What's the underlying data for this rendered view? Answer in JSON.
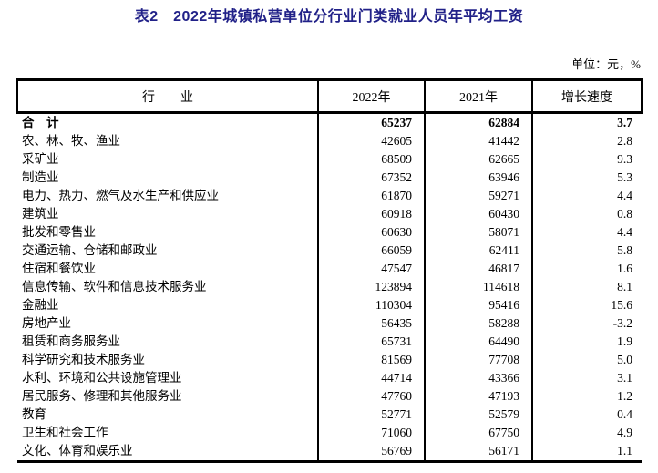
{
  "title": "表2　2022年城镇私营单位分行业门类就业人员年平均工资",
  "unit_label": "单位：元，%",
  "colors": {
    "title_text": "#212188",
    "body_text": "#000000",
    "border": "#000000",
    "background": "#ffffff"
  },
  "table": {
    "columns": [
      "行　　业",
      "2022年",
      "2021年",
      "增长速度"
    ],
    "rows": [
      {
        "industry": "合　计",
        "y2022": "65237",
        "y2021": "62884",
        "growth": "3.7",
        "bold": true
      },
      {
        "industry": "农、林、牧、渔业",
        "y2022": "42605",
        "y2021": "41442",
        "growth": "2.8",
        "bold": false
      },
      {
        "industry": "采矿业",
        "y2022": "68509",
        "y2021": "62665",
        "growth": "9.3",
        "bold": false
      },
      {
        "industry": "制造业",
        "y2022": "67352",
        "y2021": "63946",
        "growth": "5.3",
        "bold": false
      },
      {
        "industry": "电力、热力、燃气及水生产和供应业",
        "y2022": "61870",
        "y2021": "59271",
        "growth": "4.4",
        "bold": false
      },
      {
        "industry": "建筑业",
        "y2022": "60918",
        "y2021": "60430",
        "growth": "0.8",
        "bold": false
      },
      {
        "industry": "批发和零售业",
        "y2022": "60630",
        "y2021": "58071",
        "growth": "4.4",
        "bold": false
      },
      {
        "industry": "交通运输、仓储和邮政业",
        "y2022": "66059",
        "y2021": "62411",
        "growth": "5.8",
        "bold": false
      },
      {
        "industry": "住宿和餐饮业",
        "y2022": "47547",
        "y2021": "46817",
        "growth": "1.6",
        "bold": false
      },
      {
        "industry": "信息传输、软件和信息技术服务业",
        "y2022": "123894",
        "y2021": "114618",
        "growth": "8.1",
        "bold": false
      },
      {
        "industry": "金融业",
        "y2022": "110304",
        "y2021": "95416",
        "growth": "15.6",
        "bold": false
      },
      {
        "industry": "房地产业",
        "y2022": "56435",
        "y2021": "58288",
        "growth": "-3.2",
        "bold": false
      },
      {
        "industry": "租赁和商务服务业",
        "y2022": "65731",
        "y2021": "64490",
        "growth": "1.9",
        "bold": false
      },
      {
        "industry": "科学研究和技术服务业",
        "y2022": "81569",
        "y2021": "77708",
        "growth": "5.0",
        "bold": false
      },
      {
        "industry": "水利、环境和公共设施管理业",
        "y2022": "44714",
        "y2021": "43366",
        "growth": "3.1",
        "bold": false
      },
      {
        "industry": "居民服务、修理和其他服务业",
        "y2022": "47760",
        "y2021": "47193",
        "growth": "1.2",
        "bold": false
      },
      {
        "industry": "教育",
        "y2022": "52771",
        "y2021": "52579",
        "growth": "0.4",
        "bold": false
      },
      {
        "industry": "卫生和社会工作",
        "y2022": "71060",
        "y2021": "67750",
        "growth": "4.9",
        "bold": false
      },
      {
        "industry": "文化、体育和娱乐业",
        "y2022": "56769",
        "y2021": "56171",
        "growth": "1.1",
        "bold": false
      }
    ]
  }
}
